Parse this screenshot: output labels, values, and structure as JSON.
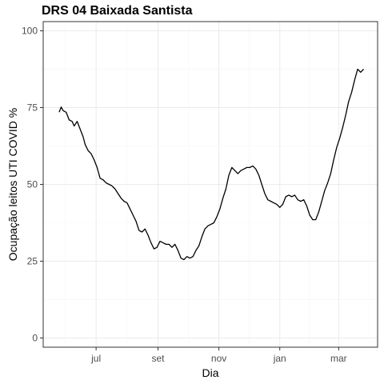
{
  "chart_data": {
    "type": "line",
    "title": "DRS 04 Baixada Santista",
    "xlabel": "Dia",
    "ylabel": "Ocupação leitos UTI COVID %",
    "ylim": [
      -3,
      103
    ],
    "xlim": [
      "2020-05-09",
      "2021-04-09"
    ],
    "grid": true,
    "legend": "none",
    "x_ticks": [
      {
        "date": "2020-07-01",
        "label": "jul"
      },
      {
        "date": "2020-09-01",
        "label": "set"
      },
      {
        "date": "2020-11-01",
        "label": "nov"
      },
      {
        "date": "2021-01-01",
        "label": "jan"
      },
      {
        "date": "2021-03-01",
        "label": "mar"
      }
    ],
    "y_ticks": [
      0,
      25,
      50,
      75,
      100
    ],
    "colors": {
      "line": "#000000",
      "grid": "#ebebeb",
      "border": "#333333"
    },
    "series": [
      {
        "x": [
          "2020-05-25",
          "2020-05-27",
          "2020-05-29",
          "2020-06-01",
          "2020-06-04",
          "2020-06-07",
          "2020-06-09",
          "2020-06-12",
          "2020-06-15",
          "2020-06-18",
          "2020-06-20",
          "2020-06-23",
          "2020-06-26",
          "2020-06-29",
          "2020-07-02",
          "2020-07-05",
          "2020-07-08",
          "2020-07-11",
          "2020-07-14",
          "2020-07-17",
          "2020-07-20",
          "2020-07-23",
          "2020-07-26",
          "2020-07-29",
          "2020-08-01",
          "2020-08-04",
          "2020-08-07",
          "2020-08-10",
          "2020-08-13",
          "2020-08-16",
          "2020-08-19",
          "2020-08-22",
          "2020-08-25",
          "2020-08-28",
          "2020-08-31",
          "2020-09-03",
          "2020-09-06",
          "2020-09-09",
          "2020-09-12",
          "2020-09-15",
          "2020-09-18",
          "2020-09-21",
          "2020-09-24",
          "2020-09-27",
          "2020-09-30",
          "2020-10-03",
          "2020-10-06",
          "2020-10-09",
          "2020-10-12",
          "2020-10-15",
          "2020-10-18",
          "2020-10-21",
          "2020-10-24",
          "2020-10-27",
          "2020-10-30",
          "2020-11-02",
          "2020-11-05",
          "2020-11-08",
          "2020-11-11",
          "2020-11-14",
          "2020-11-17",
          "2020-11-20",
          "2020-11-23",
          "2020-11-26",
          "2020-11-29",
          "2020-12-02",
          "2020-12-05",
          "2020-12-08",
          "2020-12-11",
          "2020-12-14",
          "2020-12-17",
          "2020-12-20",
          "2020-12-23",
          "2020-12-26",
          "2020-12-29",
          "2021-01-01",
          "2021-01-04",
          "2021-01-07",
          "2021-01-10",
          "2021-01-13",
          "2021-01-16",
          "2021-01-19",
          "2021-01-22",
          "2021-01-25",
          "2021-01-28",
          "2021-01-31",
          "2021-02-03",
          "2021-02-06",
          "2021-02-09",
          "2021-02-12",
          "2021-02-15",
          "2021-02-18",
          "2021-02-21",
          "2021-02-24",
          "2021-02-27",
          "2021-03-02",
          "2021-03-05",
          "2021-03-08",
          "2021-03-11",
          "2021-03-14",
          "2021-03-17",
          "2021-03-20",
          "2021-03-23",
          "2021-03-26"
        ],
        "y": [
          73.5,
          75.2,
          74.0,
          73.5,
          71.0,
          70.5,
          69.0,
          70.5,
          68.0,
          65.5,
          63.0,
          61.0,
          60.0,
          58.0,
          55.5,
          52.0,
          51.5,
          50.5,
          50.0,
          49.5,
          48.5,
          47.0,
          45.5,
          44.5,
          44.0,
          42.0,
          40.0,
          38.0,
          35.0,
          34.5,
          35.5,
          33.5,
          31.0,
          29.0,
          29.5,
          31.5,
          31.0,
          30.5,
          30.5,
          29.5,
          30.5,
          28.5,
          26.0,
          25.5,
          26.5,
          26.0,
          26.5,
          28.5,
          30.0,
          33.0,
          35.5,
          36.5,
          37.0,
          37.5,
          39.5,
          42.0,
          45.5,
          48.5,
          53.0,
          55.5,
          54.5,
          53.5,
          54.5,
          55.0,
          55.5,
          55.5,
          56.0,
          55.0,
          53.0,
          50.0,
          47.0,
          45.0,
          44.5,
          44.0,
          43.5,
          42.5,
          43.5,
          46.0,
          46.5,
          46.0,
          46.5,
          45.0,
          44.5,
          45.0,
          43.0,
          40.0,
          38.5,
          38.5,
          41.0,
          44.5,
          48.0,
          50.5,
          53.5,
          58.0,
          62.0,
          65.0,
          68.5,
          72.5,
          77.0,
          80.0,
          84.0,
          87.5,
          86.5,
          87.5
        ]
      }
    ]
  }
}
